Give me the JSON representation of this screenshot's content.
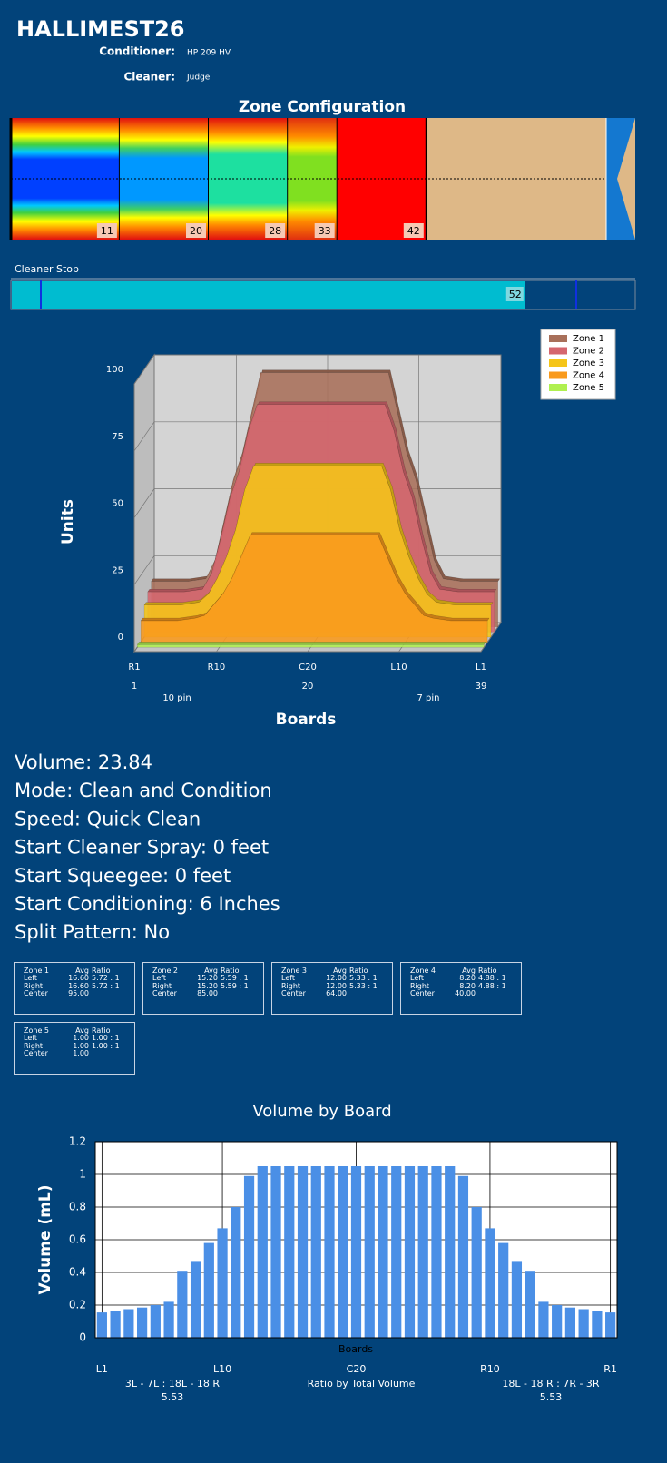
{
  "header": {
    "title": "HALLIMEST26",
    "conditioner_label": "Conditioner:",
    "conditioner": "HP 209 HV",
    "cleaner_label": "Cleaner:",
    "cleaner": "Judge"
  },
  "zone_configuration": {
    "title": "Zone Configuration",
    "markers": [
      11,
      20,
      28,
      33,
      42
    ]
  },
  "cleaner_stop": {
    "label": "Cleaner Stop",
    "value": 52
  },
  "chart_data": [
    {
      "type": "area3d",
      "y_label": "Units",
      "x_label": "Boards",
      "ylim": [
        0,
        100
      ],
      "yticks": [
        0,
        25,
        50,
        75,
        100
      ],
      "xlim": [
        1,
        39
      ],
      "xticks": [
        {
          "value": 1,
          "label": "R1"
        },
        {
          "value": 10,
          "label": "R10"
        },
        {
          "value": 20,
          "label": "C20"
        },
        {
          "value": 30,
          "label": "L10"
        },
        {
          "value": 39,
          "label": "L1"
        }
      ],
      "board_ticks": [
        1,
        20,
        39
      ],
      "annotations": [
        "10 pin",
        "7 pin"
      ],
      "legend": "top-right",
      "grid": true,
      "x": [
        1,
        5,
        7,
        8,
        9,
        10,
        11,
        12,
        13,
        27,
        28,
        29,
        30,
        31,
        32,
        33,
        35,
        39
      ],
      "series": [
        {
          "name": "Zone 1",
          "color": "#a8705a",
          "values": [
            17,
            17,
            18,
            25,
            40,
            55,
            65,
            80,
            95,
            95,
            80,
            65,
            55,
            40,
            25,
            18,
            17,
            17
          ]
        },
        {
          "name": "Zone 2",
          "color": "#d5666e",
          "values": [
            15,
            15,
            16,
            22,
            35,
            50,
            60,
            75,
            85,
            85,
            75,
            60,
            50,
            35,
            22,
            16,
            15,
            15
          ]
        },
        {
          "name": "Zone 3",
          "color": "#f5c518",
          "values": [
            12,
            12,
            13,
            16,
            22,
            30,
            40,
            55,
            64,
            64,
            55,
            40,
            30,
            22,
            16,
            13,
            12,
            12
          ]
        },
        {
          "name": "Zone 4",
          "color": "#f99a1c",
          "values": [
            8,
            8,
            9,
            10,
            14,
            18,
            24,
            32,
            40,
            40,
            32,
            24,
            18,
            14,
            10,
            9,
            8,
            8
          ]
        },
        {
          "name": "Zone 5",
          "color": "#b0f050",
          "values": [
            1,
            1,
            1,
            1,
            1,
            1,
            1,
            1,
            1,
            1,
            1,
            1,
            1,
            1,
            1,
            1,
            1,
            1
          ]
        }
      ]
    },
    {
      "type": "bar",
      "title": "Volume by Board",
      "y_label": "Volume (mL)",
      "x_label": "Boards",
      "color": "#4a8fe6",
      "ylim": [
        0,
        1.2
      ],
      "yticks": [
        0,
        0.2,
        0.4,
        0.6,
        0.8,
        1,
        1.2
      ],
      "xlim": [
        0.5,
        39.5
      ],
      "grid": true,
      "xticks": [
        {
          "value": 1,
          "label": "L1"
        },
        {
          "value": 10,
          "label": "L10"
        },
        {
          "value": 20,
          "label": "C20"
        },
        {
          "value": 30,
          "label": "R10"
        },
        {
          "value": 39,
          "label": "R1"
        }
      ],
      "x": [
        1,
        2,
        3,
        4,
        5,
        6,
        7,
        8,
        9,
        10,
        11,
        12,
        13,
        14,
        15,
        16,
        17,
        18,
        19,
        20,
        21,
        22,
        23,
        24,
        25,
        26,
        27,
        28,
        29,
        30,
        31,
        32,
        33,
        34,
        35,
        36,
        37,
        38,
        39
      ],
      "values": [
        0.155,
        0.165,
        0.175,
        0.185,
        0.2,
        0.22,
        0.41,
        0.47,
        0.58,
        0.67,
        0.8,
        0.99,
        1.05,
        1.05,
        1.05,
        1.05,
        1.05,
        1.05,
        1.05,
        1.05,
        1.05,
        1.05,
        1.05,
        1.05,
        1.05,
        1.05,
        1.05,
        0.99,
        0.8,
        0.67,
        0.58,
        0.47,
        0.41,
        0.22,
        0.2,
        0.185,
        0.175,
        0.165,
        0.155
      ],
      "footer": {
        "left_label": "3L - 7L : 18L - 18 R",
        "left_value": 5.53,
        "center_label": "Ratio by Total Volume",
        "right_label": "18L - 18 R : 7R - 3R",
        "right_value": 5.53
      }
    }
  ],
  "settings_text": [
    "Volume: 23.84",
    "Mode: Clean and Condition",
    "Speed: Quick Clean",
    "Start Cleaner Spray: 0 feet",
    "Start Squeegee: 0 feet",
    "Start Conditioning: 6 Inches",
    "Split Pattern: No"
  ],
  "zone_tables": {
    "columns": [
      "Avg",
      "Ratio"
    ],
    "zones": [
      {
        "title": "Zone 1",
        "rows": [
          [
            "Left",
            "16.60",
            "5.72 : 1"
          ],
          [
            "Right",
            "16.60",
            "5.72 : 1"
          ],
          [
            "Center",
            "95.00"
          ]
        ]
      },
      {
        "title": "Zone 2",
        "rows": [
          [
            "Left",
            "15.20",
            "5.59 : 1"
          ],
          [
            "Right",
            "15.20",
            "5.59 : 1"
          ],
          [
            "Center",
            "85.00"
          ]
        ]
      },
      {
        "title": "Zone 3",
        "rows": [
          [
            "Left",
            "12.00",
            "5.33 : 1"
          ],
          [
            "Right",
            "12.00",
            "5.33 : 1"
          ],
          [
            "Center",
            "64.00"
          ]
        ]
      },
      {
        "title": "Zone 4",
        "rows": [
          [
            "Left",
            "8.20",
            "4.88 : 1"
          ],
          [
            "Right",
            "8.20",
            "4.88 : 1"
          ],
          [
            "Center",
            "40.00"
          ]
        ]
      },
      {
        "title": "Zone 5",
        "rows": [
          [
            "Left",
            "1.00",
            "1.00 : 1"
          ],
          [
            "Right",
            "1.00",
            "1.00 : 1"
          ],
          [
            "Center",
            "1.00"
          ]
        ]
      }
    ]
  }
}
